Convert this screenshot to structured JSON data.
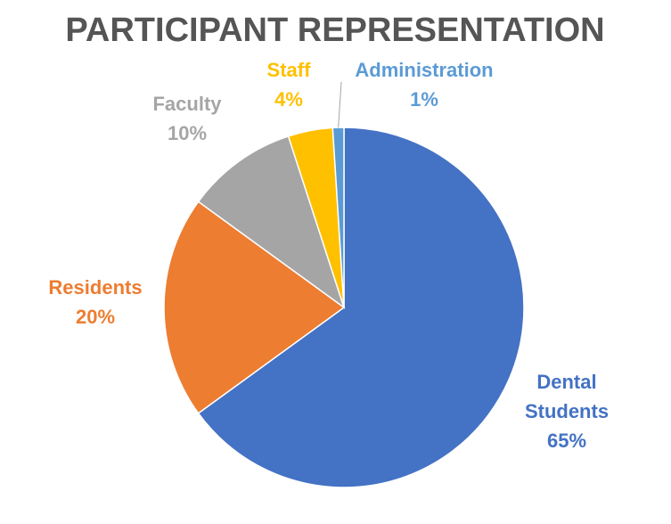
{
  "chart_data": {
    "type": "pie",
    "title": "PARTICIPANT REPRESENTATION",
    "slices": [
      {
        "name": "Dental Students",
        "label_lines": [
          "Dental",
          "Students"
        ],
        "value": 65,
        "value_label": "65%",
        "color": "#4472C4"
      },
      {
        "name": "Residents",
        "label_lines": [
          "Residents"
        ],
        "value": 20,
        "value_label": "20%",
        "color": "#ED7D31"
      },
      {
        "name": "Faculty",
        "label_lines": [
          "Faculty"
        ],
        "value": 10,
        "value_label": "10%",
        "color": "#A5A5A5"
      },
      {
        "name": "Staff",
        "label_lines": [
          "Staff"
        ],
        "value": 4,
        "value_label": "4%",
        "color": "#FFC000"
      },
      {
        "name": "Administration",
        "label_lines": [
          "Administration"
        ],
        "value": 1,
        "value_label": "1%",
        "color": "#5B9BD5"
      }
    ],
    "legend": "none",
    "start_angle_deg": 0,
    "direction": "clockwise"
  }
}
